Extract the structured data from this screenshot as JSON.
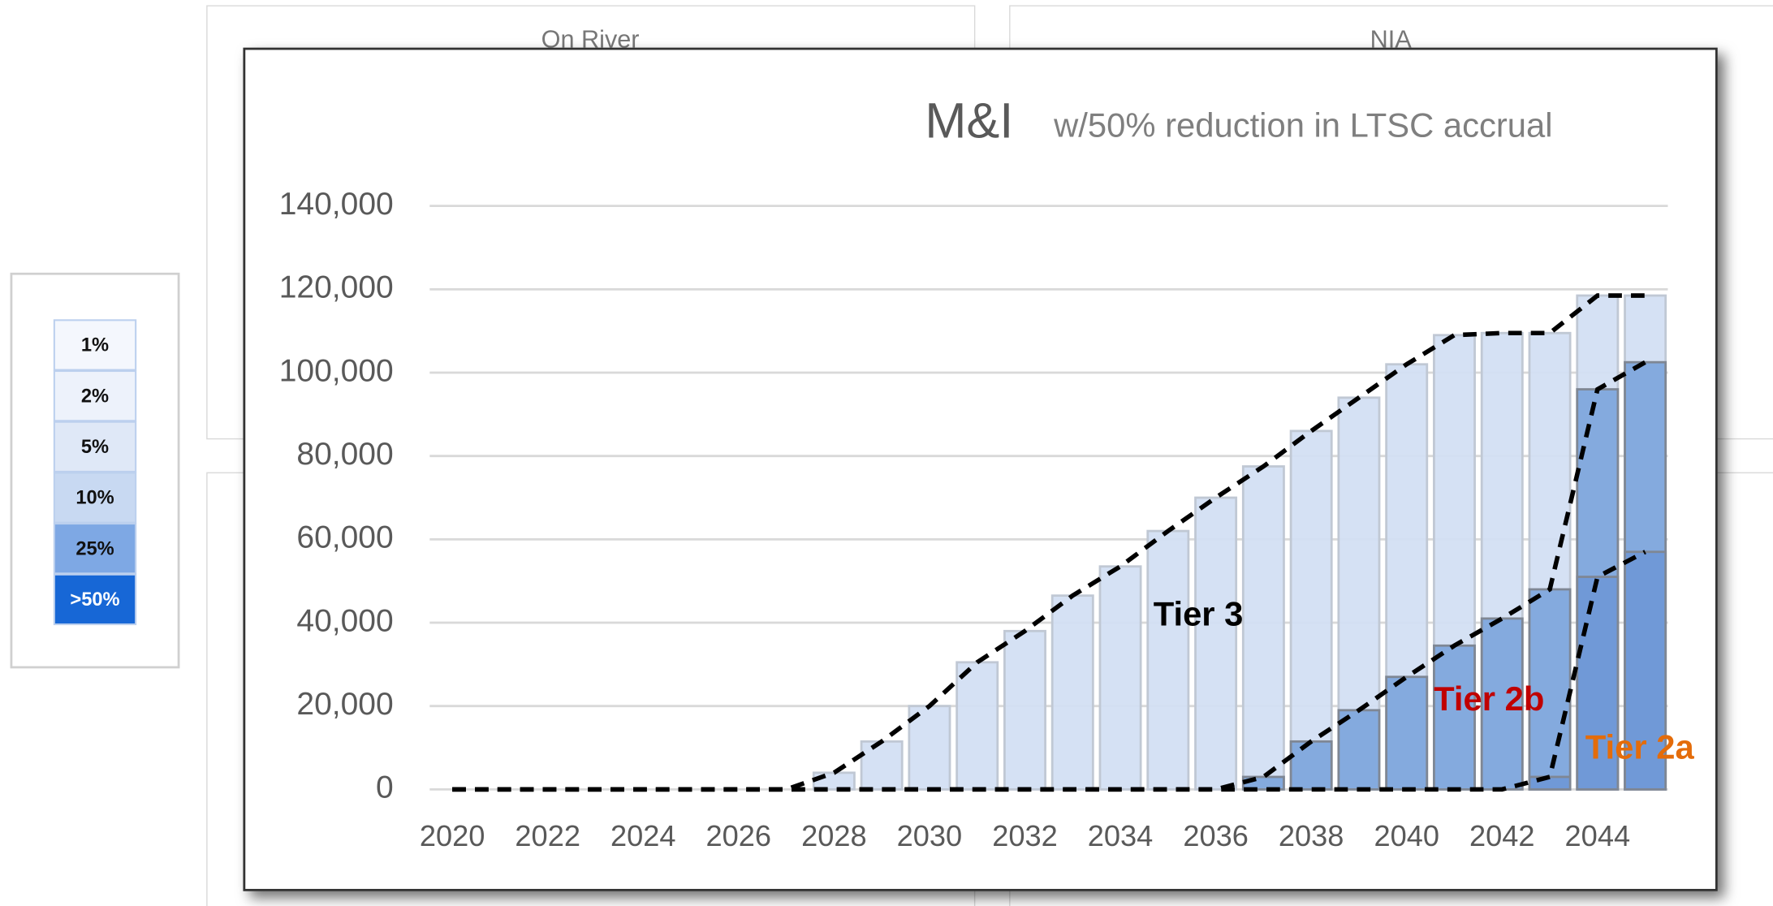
{
  "background": {
    "panels": [
      {
        "title": "On River"
      },
      {
        "title": "NIA"
      }
    ]
  },
  "legend_scale": {
    "items": [
      {
        "label": "1%",
        "color": "#f4f7fd"
      },
      {
        "label": "2%",
        "color": "#edf2fb"
      },
      {
        "label": "5%",
        "color": "#dfe8f7"
      },
      {
        "label": "10%",
        "color": "#c8d9f2"
      },
      {
        "label": "25%",
        "color": "#7ea8e4"
      },
      {
        "label": ">50%",
        "color": "#1767d6"
      }
    ]
  },
  "chart_data": {
    "type": "bar",
    "title": "M&I",
    "subtitle": "w/50% reduction in LTSC accrual",
    "categories": [
      2020,
      null,
      2022,
      null,
      2024,
      null,
      2026,
      null,
      2028,
      null,
      2030,
      null,
      2032,
      null,
      2034,
      null,
      2036,
      null,
      2038,
      null,
      2040,
      null,
      2042,
      null,
      2044,
      null
    ],
    "series": [
      {
        "name": "Tier 3",
        "color": "#d3dff3",
        "label_color": "#000000",
        "values": [
          0,
          0,
          0,
          0,
          0,
          0,
          0,
          0,
          4000,
          11500,
          20000,
          30500,
          38000,
          46500,
          53500,
          62000,
          70000,
          77500,
          86000,
          94000,
          102000,
          109000,
          109500,
          109500,
          118500,
          118500
        ]
      },
      {
        "name": "Tier 2b",
        "color": "#7fa6dc",
        "label_color": "#c00000",
        "values": [
          0,
          0,
          0,
          0,
          0,
          0,
          0,
          0,
          0,
          0,
          0,
          0,
          0,
          0,
          0,
          0,
          0,
          3000,
          11500,
          19000,
          27000,
          34500,
          41000,
          48000,
          96000,
          102500
        ]
      },
      {
        "name": "Tier 2a",
        "color": "#6f98d6",
        "label_color": "#e46c0a",
        "values": [
          0,
          0,
          0,
          0,
          0,
          0,
          0,
          0,
          0,
          0,
          0,
          0,
          0,
          0,
          0,
          0,
          0,
          0,
          0,
          0,
          0,
          0,
          0,
          3000,
          51000,
          57000
        ]
      }
    ],
    "ylim": [
      0,
      140000
    ],
    "yticks": [
      0,
      {
        "value": 20000,
        "label": "20,000"
      },
      {
        "value": 40000,
        "label": "40,000"
      },
      {
        "value": 60000,
        "label": "60,000"
      },
      {
        "value": 80000,
        "label": "80,000"
      },
      {
        "value": 100000,
        "label": "100,000"
      },
      {
        "value": 120000,
        "label": "120,000"
      },
      {
        "value": 140000,
        "label": "140,000"
      }
    ],
    "grid": true,
    "line_style": "dashed"
  }
}
